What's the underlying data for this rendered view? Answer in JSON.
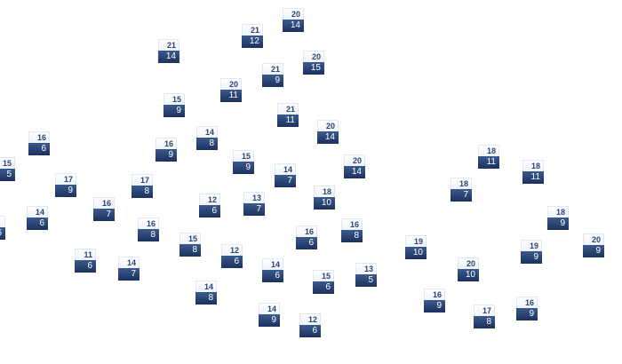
{
  "map": {
    "colors": {
      "high_bg": "#f3f6fc",
      "low_bg": "#25406f",
      "high_text": "#2b4476",
      "low_text": "#ffffff"
    },
    "markers": [
      {
        "high": "20",
        "low": "14"
      },
      {
        "high": "21",
        "low": "12"
      },
      {
        "high": "21",
        "low": "14"
      },
      {
        "high": "20",
        "low": "15"
      },
      {
        "high": "21",
        "low": "9"
      },
      {
        "high": "20",
        "low": "11"
      },
      {
        "high": "15",
        "low": "9"
      },
      {
        "high": "21",
        "low": "11"
      },
      {
        "high": "20",
        "low": "14"
      },
      {
        "high": "14",
        "low": "8"
      },
      {
        "high": "16",
        "low": "6"
      },
      {
        "high": "16",
        "low": "9"
      },
      {
        "high": "15",
        "low": "9"
      },
      {
        "high": "20",
        "low": "14"
      },
      {
        "high": "15",
        "low": "5"
      },
      {
        "high": "14",
        "low": "7"
      },
      {
        "high": "17",
        "low": "9"
      },
      {
        "high": "17",
        "low": "8"
      },
      {
        "high": "18",
        "low": "11"
      },
      {
        "high": "18",
        "low": "11"
      },
      {
        "high": "18",
        "low": "7"
      },
      {
        "high": "18",
        "low": "10"
      },
      {
        "high": "12",
        "low": "6"
      },
      {
        "high": "13",
        "low": "7"
      },
      {
        "high": "16",
        "low": "7"
      },
      {
        "high": "14",
        "low": "6"
      },
      {
        "high": "",
        "low": "6"
      },
      {
        "high": "18",
        "low": "9"
      },
      {
        "high": "16",
        "low": "8"
      },
      {
        "high": "16",
        "low": "6"
      },
      {
        "high": "16",
        "low": "8"
      },
      {
        "high": "15",
        "low": "8"
      },
      {
        "high": "20",
        "low": "9"
      },
      {
        "high": "19",
        "low": "10"
      },
      {
        "high": "19",
        "low": "9"
      },
      {
        "high": "12",
        "low": "6"
      },
      {
        "high": "11",
        "low": "6"
      },
      {
        "high": "14",
        "low": "7"
      },
      {
        "high": "20",
        "low": "10"
      },
      {
        "high": "14",
        "low": "6"
      },
      {
        "high": "13",
        "low": "5"
      },
      {
        "high": "15",
        "low": "6"
      },
      {
        "high": "14",
        "low": "8"
      },
      {
        "high": "16",
        "low": "9"
      },
      {
        "high": "16",
        "low": "9"
      },
      {
        "high": "17",
        "low": "8"
      },
      {
        "high": "14",
        "low": "9"
      },
      {
        "high": "12",
        "low": "6"
      }
    ]
  }
}
